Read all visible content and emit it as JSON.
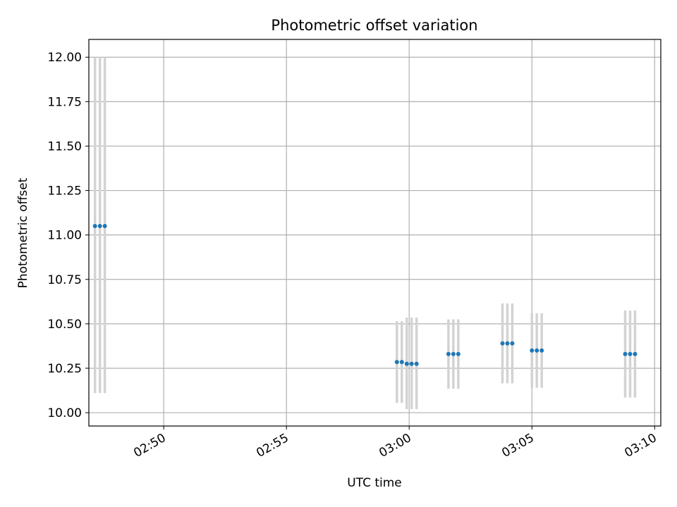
{
  "chart_data": {
    "type": "scatter",
    "title": "Photometric offset variation",
    "xlabel": "UTC time",
    "ylabel": "Photometric offset",
    "xlim_minutes": [
      -13.05,
      10.25
    ],
    "ylim": [
      9.925,
      12.1
    ],
    "grid": true,
    "x_ticks": [
      {
        "value": -10,
        "label": "02:50"
      },
      {
        "value": -5,
        "label": "02:55"
      },
      {
        "value": 0,
        "label": "03:00"
      },
      {
        "value": 5,
        "label": "03:05"
      },
      {
        "value": 10,
        "label": "03:10"
      }
    ],
    "y_ticks": [
      {
        "value": 10.0,
        "label": "10.00"
      },
      {
        "value": 10.25,
        "label": "10.25"
      },
      {
        "value": 10.5,
        "label": "10.50"
      },
      {
        "value": 10.75,
        "label": "10.75"
      },
      {
        "value": 11.0,
        "label": "11.00"
      },
      {
        "value": 11.25,
        "label": "11.25"
      },
      {
        "value": 11.5,
        "label": "11.50"
      },
      {
        "value": 11.75,
        "label": "11.75"
      },
      {
        "value": 12.0,
        "label": "12.00"
      }
    ],
    "points": [
      {
        "t": -12.8,
        "y": 11.05,
        "lo": 10.11,
        "hi": 12.0
      },
      {
        "t": -12.6,
        "y": 11.05,
        "lo": 10.11,
        "hi": 12.0
      },
      {
        "t": -12.4,
        "y": 11.05,
        "lo": 10.11,
        "hi": 12.0
      },
      {
        "t": -0.5,
        "y": 10.285,
        "lo": 10.055,
        "hi": 10.515
      },
      {
        "t": -0.3,
        "y": 10.285,
        "lo": 10.055,
        "hi": 10.515
      },
      {
        "t": -0.1,
        "y": 10.275,
        "lo": 10.02,
        "hi": 10.535
      },
      {
        "t": 0.1,
        "y": 10.275,
        "lo": 10.02,
        "hi": 10.535
      },
      {
        "t": 0.3,
        "y": 10.275,
        "lo": 10.02,
        "hi": 10.535
      },
      {
        "t": 1.6,
        "y": 10.33,
        "lo": 10.135,
        "hi": 10.525
      },
      {
        "t": 1.8,
        "y": 10.33,
        "lo": 10.135,
        "hi": 10.525
      },
      {
        "t": 2.0,
        "y": 10.33,
        "lo": 10.135,
        "hi": 10.525
      },
      {
        "t": 3.8,
        "y": 10.39,
        "lo": 10.165,
        "hi": 10.615
      },
      {
        "t": 4.0,
        "y": 10.39,
        "lo": 10.165,
        "hi": 10.615
      },
      {
        "t": 4.2,
        "y": 10.39,
        "lo": 10.165,
        "hi": 10.615
      },
      {
        "t": 5.0,
        "y": 10.35,
        "lo": 10.14,
        "hi": 10.56
      },
      {
        "t": 5.2,
        "y": 10.35,
        "lo": 10.14,
        "hi": 10.56
      },
      {
        "t": 5.4,
        "y": 10.35,
        "lo": 10.14,
        "hi": 10.56
      },
      {
        "t": 8.8,
        "y": 10.33,
        "lo": 10.085,
        "hi": 10.575
      },
      {
        "t": 9.0,
        "y": 10.33,
        "lo": 10.085,
        "hi": 10.575
      },
      {
        "t": 9.2,
        "y": 10.33,
        "lo": 10.085,
        "hi": 10.575
      }
    ],
    "colors": {
      "point": "#1f77b4",
      "errorbar": "#d3d3d3",
      "grid": "#b0b0b0"
    }
  }
}
